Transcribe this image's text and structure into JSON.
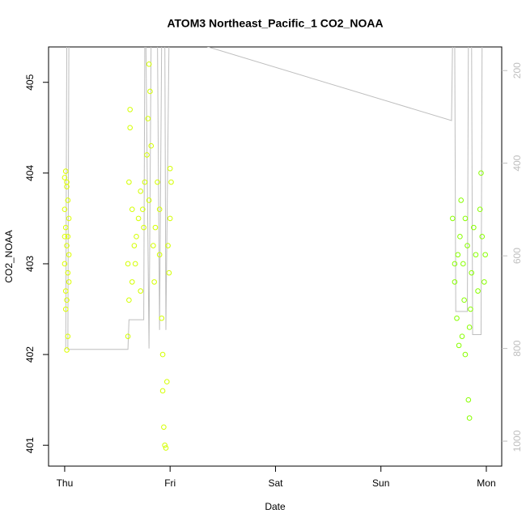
{
  "chart_data": {
    "type": "scatter",
    "title": "ATOM3 Northeast_Pacific_1 CO2_NOAA",
    "x_label": "Date",
    "y_label": "CO2_NOAA",
    "xlim": [
      -0.153,
      4.146
    ],
    "xticks": [
      {
        "value": 0,
        "label": "Thu"
      },
      {
        "value": 1,
        "label": "Fri"
      },
      {
        "value": 2,
        "label": "Sat"
      },
      {
        "value": 3,
        "label": "Sun"
      },
      {
        "value": 4,
        "label": "Mon"
      }
    ],
    "ylim": [
      400.77,
      405.39
    ],
    "yticks": [
      401,
      402,
      403,
      404,
      405
    ],
    "y2lim": [
      1054,
      149
    ],
    "y2ticks": [
      200,
      400,
      600,
      800,
      1000
    ],
    "y2_color": "#bebebe",
    "series": [
      {
        "color": "#ddff00",
        "x": [
          0.0,
          0.01,
          0.02,
          0.0,
          0.03,
          0.01,
          0.02,
          0.04,
          0.0,
          0.03,
          0.01,
          0.02,
          0.04,
          0.03,
          0.02,
          0.01,
          0.03,
          0.02,
          0.04,
          0.0
        ],
        "values": [
          403.95,
          404.02,
          403.85,
          403.6,
          403.7,
          403.4,
          403.2,
          403.5,
          403.0,
          402.9,
          402.7,
          402.6,
          402.8,
          403.3,
          403.9,
          402.5,
          402.2,
          402.05,
          403.1,
          403.3
        ]
      },
      {
        "color": "#d4ff00",
        "x": [
          0.6,
          0.61,
          0.6,
          0.62,
          0.62,
          0.61,
          0.64,
          0.66,
          0.68,
          0.7,
          0.72,
          0.72,
          0.74,
          0.76,
          0.78,
          0.79,
          0.8,
          0.81,
          0.82,
          0.8,
          0.84,
          0.85,
          0.86,
          0.88,
          0.9,
          0.92,
          0.93,
          0.94,
          0.95,
          0.96,
          0.93,
          0.97,
          0.98,
          1.0,
          1.01,
          1.0,
          0.99,
          0.9,
          0.75,
          0.67,
          0.64
        ],
        "values": [
          402.2,
          402.6,
          403.0,
          404.7,
          404.5,
          403.9,
          402.8,
          403.2,
          403.3,
          403.5,
          402.7,
          403.8,
          403.6,
          403.9,
          404.2,
          404.6,
          405.2,
          404.9,
          404.3,
          403.7,
          403.2,
          402.8,
          403.4,
          403.9,
          403.6,
          402.4,
          401.6,
          401.2,
          401.0,
          400.97,
          402.0,
          401.7,
          403.2,
          403.5,
          403.9,
          404.05,
          402.9,
          403.1,
          403.4,
          403.0,
          403.6
        ]
      },
      {
        "color": "#88ff00",
        "x": [
          3.68,
          3.7,
          3.7,
          3.72,
          3.74,
          3.75,
          3.76,
          3.78,
          3.79,
          3.8,
          3.8,
          3.82,
          3.83,
          3.84,
          3.84,
          3.86,
          3.88,
          3.9,
          3.92,
          3.94,
          3.95,
          3.96,
          3.98,
          3.99,
          3.85,
          3.73,
          3.77
        ],
        "values": [
          403.5,
          403.0,
          402.8,
          402.4,
          402.1,
          403.3,
          403.7,
          403.0,
          402.6,
          402.0,
          403.5,
          403.2,
          401.5,
          401.3,
          402.3,
          402.9,
          403.4,
          403.1,
          402.7,
          403.6,
          404.0,
          403.3,
          402.8,
          403.1,
          402.5,
          403.1,
          402.2
        ]
      },
      {
        "type": "line",
        "axis": "y2",
        "color": "#bebebe",
        "x": [
          0.01,
          0.02,
          0.04,
          0.03,
          0.6,
          0.61,
          0.75,
          0.76,
          0.77,
          0.8,
          0.82,
          0.88,
          0.9,
          0.92,
          0.95,
          0.96,
          0.99,
          1.23,
          3.67,
          3.68,
          3.7,
          3.71,
          3.82,
          3.83,
          3.86,
          3.87,
          3.95,
          3.96,
          4.0
        ],
        "values": [
          802,
          130,
          130,
          802,
          802,
          738,
          738,
          130,
          130,
          800,
          130,
          130,
          760,
          130,
          130,
          760,
          130,
          140,
          308,
          130,
          130,
          720,
          720,
          130,
          130,
          770,
          770,
          130,
          130
        ]
      }
    ]
  }
}
